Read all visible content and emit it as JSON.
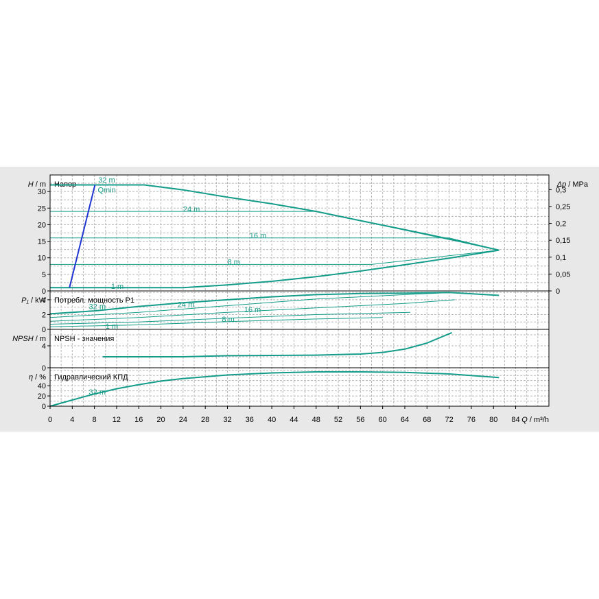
{
  "chart_data": {
    "type": "line",
    "colors": {
      "curve": "#149c8a",
      "qmin": "#1f35d1",
      "grid": "#b8b8b8",
      "frame": "#000000"
    },
    "x_axis": {
      "ticks": [
        0,
        4,
        8,
        12,
        16,
        20,
        24,
        28,
        32,
        36,
        40,
        44,
        48,
        52,
        56,
        60,
        64,
        68,
        72,
        76,
        80,
        84
      ],
      "tick_labels": [
        "0",
        "4",
        "8",
        "12",
        "16",
        "20",
        "24",
        "28",
        "32",
        "36",
        "40",
        "44",
        "48",
        "52",
        "56",
        "60",
        "64",
        "68",
        "72",
        "76",
        "80",
        "84"
      ],
      "label_q": "Q",
      "label_unit": " / m³/h",
      "range": [
        0,
        90
      ]
    },
    "panels": [
      {
        "id": "head",
        "title": "Напор",
        "ylabel_sym": "H",
        "ylabel_unit": " / m",
        "ylim": [
          0,
          35
        ],
        "yticks": [
          0,
          5,
          10,
          15,
          20,
          25,
          30
        ],
        "ytick_labels": [
          "0",
          "5",
          "10",
          "15",
          "20",
          "25",
          "30"
        ],
        "right_axis": {
          "label_sym": "Δp",
          "label_unit": " / MPa",
          "ticks": [
            0,
            0.05,
            0.1,
            0.15,
            0.2,
            0.25,
            0.3
          ],
          "tick_labels": [
            "0",
            "0,05",
            "0,1",
            "0,15",
            "0,2",
            "0,25",
            "0,3"
          ],
          "scale": 0.00981
        },
        "series": [
          {
            "name": "32 m",
            "label_at": [
              8.7,
              33.5
            ],
            "width": 2,
            "points": [
              [
                0,
                32
              ],
              [
                17,
                32
              ],
              [
                24,
                30.5
              ],
              [
                32,
                28.3
              ],
              [
                40,
                26.3
              ],
              [
                48,
                24
              ],
              [
                56,
                21.2
              ],
              [
                64,
                18.5
              ],
              [
                72,
                15.7
              ],
              [
                81,
                12.3
              ]
            ]
          },
          {
            "name": "24 m",
            "label_at": [
              24,
              24.8
            ],
            "width": 1,
            "points": [
              [
                0,
                24
              ],
              [
                48,
                24
              ],
              [
                81,
                12.3
              ]
            ]
          },
          {
            "name": "16 m",
            "label_at": [
              36,
              16.8
            ],
            "width": 1,
            "points": [
              [
                0,
                16
              ],
              [
                72,
                16
              ],
              [
                81,
                12.3
              ]
            ]
          },
          {
            "name": "8 m",
            "label_at": [
              32,
              8.8
            ],
            "width": 1,
            "points": [
              [
                0,
                8
              ],
              [
                58,
                8
              ],
              [
                81,
                12.3
              ]
            ]
          },
          {
            "name": "1 m",
            "label_at": [
              11,
              1.5
            ],
            "width": 2,
            "points": [
              [
                0,
                1
              ],
              [
                24,
                1
              ],
              [
                32,
                1.8
              ],
              [
                40,
                2.9
              ],
              [
                48,
                4.3
              ],
              [
                56,
                6
              ],
              [
                64,
                7.9
              ],
              [
                72,
                9.9
              ],
              [
                81,
                12.3
              ]
            ]
          }
        ],
        "qmin": {
          "label": "Qmin",
          "label_at": [
            8.6,
            30.5
          ],
          "points": [
            [
              3.5,
              1
            ],
            [
              8.1,
              32
            ]
          ]
        }
      },
      {
        "id": "power",
        "title": "Потребл. мощность P1",
        "ylabel_sym": "P₁",
        "ylabel_unit": " / kW",
        "ylim": [
          0,
          5.2
        ],
        "yticks": [
          0,
          2,
          4
        ],
        "ytick_labels": [
          "0",
          "2",
          "4"
        ],
        "series": [
          {
            "name": "32 m",
            "label_at": [
              7,
              3.1
            ],
            "width": 2,
            "points": [
              [
                0,
                2.1
              ],
              [
                8,
                2.5
              ],
              [
                16,
                3.1
              ],
              [
                24,
                3.6
              ],
              [
                32,
                4
              ],
              [
                40,
                4.4
              ],
              [
                48,
                4.7
              ],
              [
                56,
                4.85
              ],
              [
                64,
                4.9
              ],
              [
                72,
                5
              ],
              [
                81,
                4.6
              ]
            ]
          },
          {
            "name": "24 m",
            "label_at": [
              23,
              3.4
            ],
            "width": 1,
            "points": [
              [
                0,
                1.6
              ],
              [
                16,
                2.3
              ],
              [
                32,
                3.2
              ],
              [
                48,
                4.1
              ],
              [
                64,
                4.7
              ],
              [
                73,
                5
              ]
            ]
          },
          {
            "name": "16 m",
            "label_at": [
              35,
              2.7
            ],
            "width": 1,
            "points": [
              [
                0,
                1.1
              ],
              [
                16,
                1.6
              ],
              [
                32,
                2.3
              ],
              [
                48,
                2.9
              ],
              [
                64,
                3.5
              ],
              [
                73,
                4
              ]
            ]
          },
          {
            "name": "8 m",
            "label_at": [
              31,
              1.4
            ],
            "width": 1,
            "points": [
              [
                0,
                0.7
              ],
              [
                16,
                1
              ],
              [
                32,
                1.5
              ],
              [
                48,
                2
              ],
              [
                65,
                2.3
              ]
            ]
          },
          {
            "name": "1 m",
            "label_at": [
              10,
              0.45
            ],
            "width": 1,
            "points": [
              [
                0,
                0.35
              ],
              [
                16,
                0.6
              ],
              [
                32,
                1.05
              ],
              [
                48,
                1.4
              ],
              [
                60,
                1.6
              ]
            ]
          }
        ]
      },
      {
        "id": "npsh",
        "title": "NPSH - значения",
        "ylabel_sym": "NPSH",
        "ylabel_unit": " / m",
        "ylim": [
          0,
          7
        ],
        "yticks": [
          0,
          4
        ],
        "ytick_labels": [
          "0",
          "4"
        ],
        "series": [
          {
            "name": "",
            "label_at": null,
            "width": 2,
            "points": [
              [
                9.5,
                2
              ],
              [
                24,
                2
              ],
              [
                32,
                2.2
              ],
              [
                40,
                2.25
              ],
              [
                48,
                2.3
              ],
              [
                56,
                2.5
              ],
              [
                60,
                2.8
              ],
              [
                64,
                3.4
              ],
              [
                68,
                4.5
              ],
              [
                72.5,
                6.4
              ]
            ]
          }
        ]
      },
      {
        "id": "eff",
        "title": "Гидравлический КПД",
        "ylabel_sym": "η",
        "ylabel_unit": " / %",
        "ylim": [
          0,
          75
        ],
        "yticks": [
          0,
          20,
          40
        ],
        "ytick_labels": [
          "0",
          "20",
          "40"
        ],
        "series": [
          {
            "name": "32 m",
            "label_at": [
              7,
              28
            ],
            "width": 2,
            "points": [
              [
                0,
                0
              ],
              [
                4,
                12
              ],
              [
                8,
                24
              ],
              [
                12,
                34
              ],
              [
                16,
                42
              ],
              [
                20,
                49
              ],
              [
                24,
                54
              ],
              [
                32,
                61
              ],
              [
                40,
                65
              ],
              [
                48,
                67
              ],
              [
                56,
                67
              ],
              [
                64,
                66
              ],
              [
                72,
                63
              ],
              [
                81,
                56
              ]
            ]
          }
        ]
      }
    ]
  }
}
